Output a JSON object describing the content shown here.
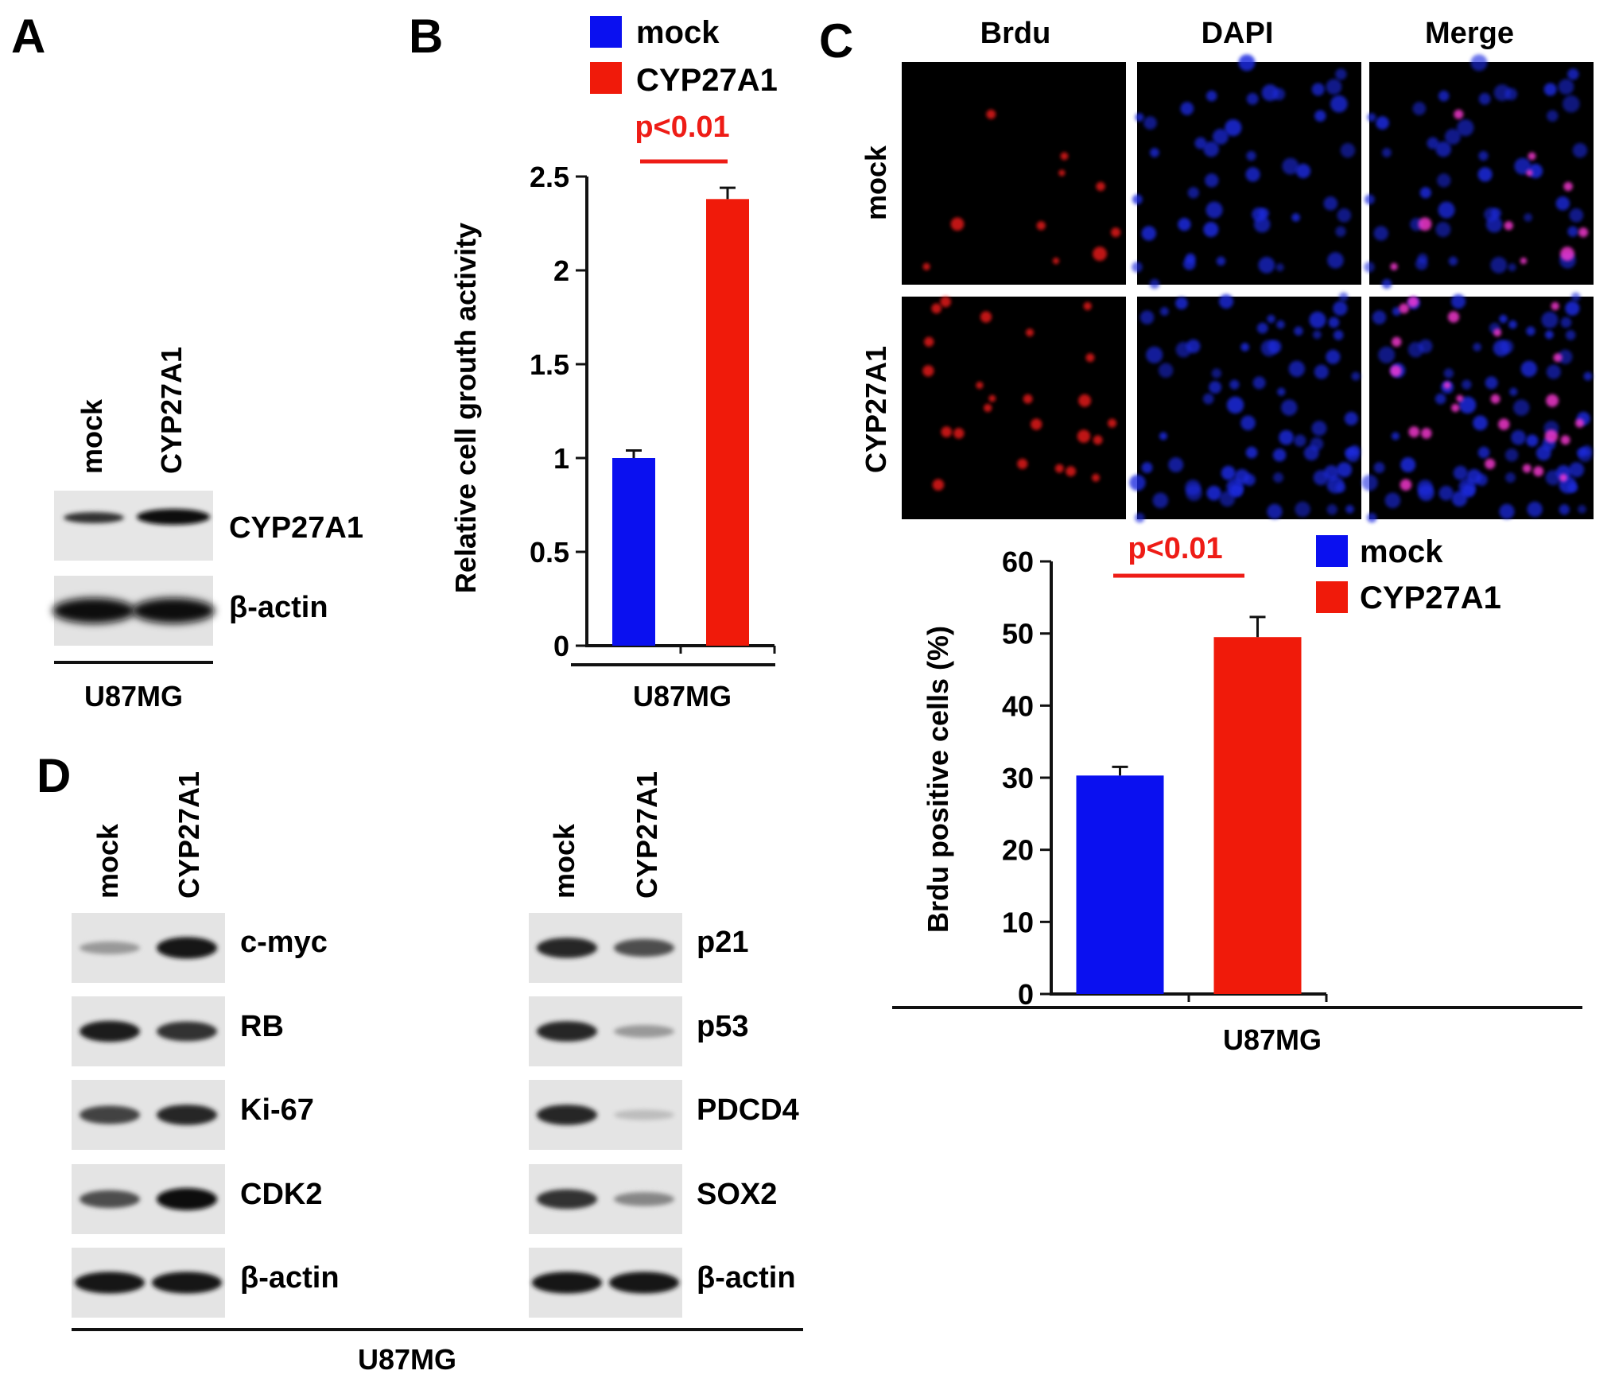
{
  "panel_letters": {
    "a": "A",
    "b": "B",
    "c": "C",
    "d": "D"
  },
  "colors": {
    "mock": "#0a10f0",
    "cyp27a1": "#f01a0a",
    "sig": "#ee1c16",
    "axis": "#111111"
  },
  "panelA": {
    "lane_labels": [
      "mock",
      "CYP27A1"
    ],
    "blot_labels": [
      "CYP27A1",
      "β-actin"
    ],
    "cell_line": "U87MG"
  },
  "panelB": {
    "legend": [
      "mock",
      "CYP27A1"
    ],
    "significance": "p<0.01",
    "cell_line": "U87MG"
  },
  "panelC": {
    "column_labels": [
      "Brdu",
      "DAPI",
      "Merge"
    ],
    "row_labels": [
      "mock",
      "CYP27A1"
    ],
    "legend": [
      "mock",
      "CYP27A1"
    ],
    "significance": "p<0.01",
    "cell_line": "U87MG"
  },
  "panelD": {
    "left": {
      "lane_labels": [
        "mock",
        "CYP27A1"
      ],
      "blot_labels": [
        "c-myc",
        "RB",
        "Ki-67",
        "CDK2",
        "β-actin"
      ]
    },
    "right": {
      "lane_labels": [
        "mock",
        "CYP27A1"
      ],
      "blot_labels": [
        "p21",
        "p53",
        "PDCD4",
        "SOX2",
        "β-actin"
      ]
    },
    "cell_line": "U87MG"
  },
  "chart_data": [
    {
      "panel": "B",
      "type": "bar",
      "categories": [
        "mock",
        "CYP27A1"
      ],
      "values": [
        1.0,
        2.38
      ],
      "errors": [
        0.04,
        0.06
      ],
      "ylabel": "Relative cell grouth activity",
      "xlabel": "U87MG",
      "ylim": [
        0,
        2.5
      ],
      "yticks": [
        "0",
        "0.5",
        "1",
        "1.5",
        "2",
        "2.5"
      ],
      "legend": "top"
    },
    {
      "panel": "C",
      "type": "bar",
      "categories": [
        "mock",
        "CYP27A1"
      ],
      "values": [
        30.3,
        49.5
      ],
      "errors": [
        1.2,
        2.8
      ],
      "ylabel": "Brdu positive cells (%)",
      "xlabel": "U87MG",
      "ylim": [
        0,
        60
      ],
      "yticks": [
        "0",
        "10",
        "20",
        "30",
        "40",
        "50",
        "60"
      ],
      "legend": "top-right"
    }
  ]
}
